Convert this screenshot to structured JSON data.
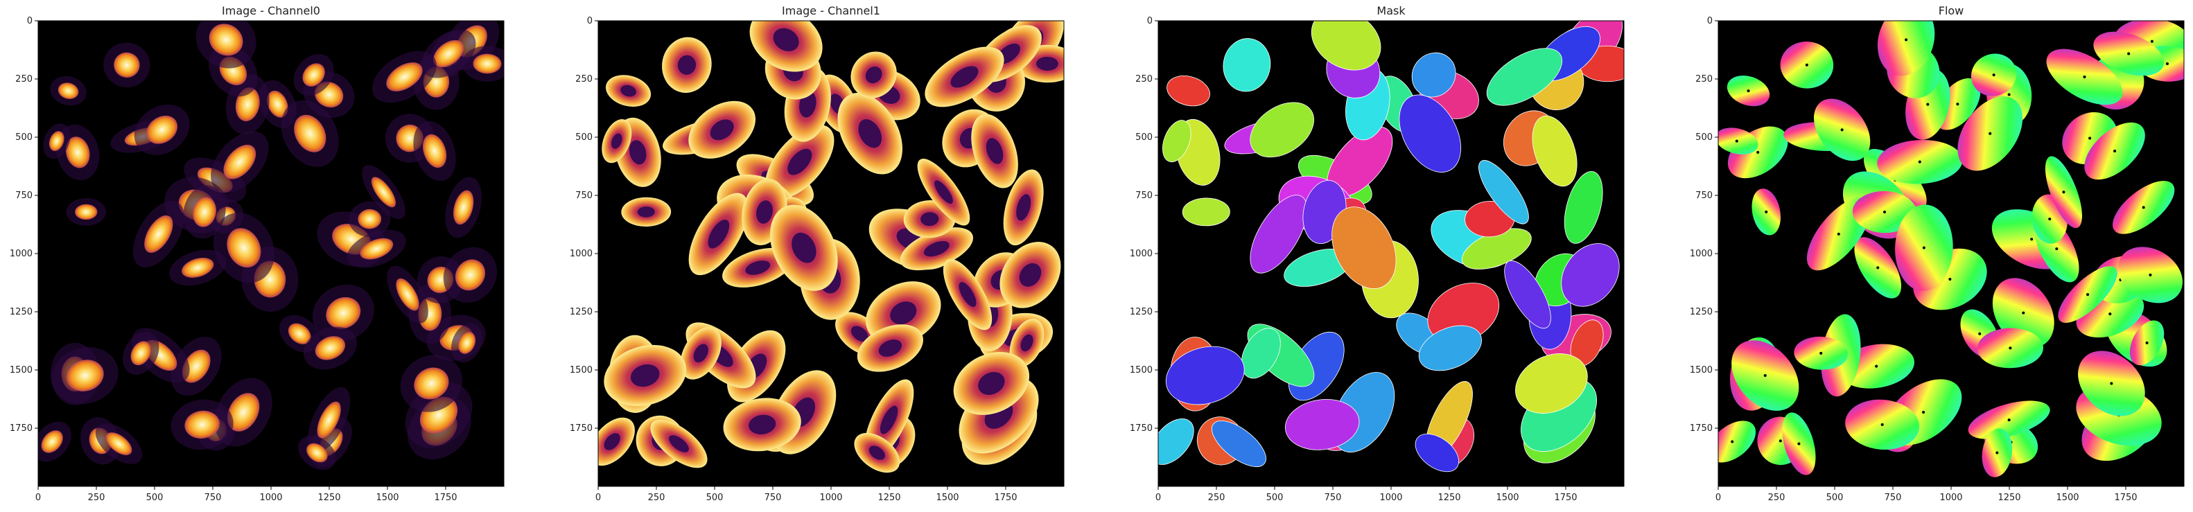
{
  "panels": [
    {
      "title": "Image - Channel0",
      "kind": "nuclei"
    },
    {
      "title": "Image - Channel1",
      "kind": "cyto"
    },
    {
      "title": "Mask",
      "kind": "mask"
    },
    {
      "title": "Flow",
      "kind": "flow"
    }
  ],
  "axes": {
    "x_ticks": [
      "0",
      "250",
      "500",
      "750",
      "1000",
      "1250",
      "1500",
      "1750"
    ],
    "y_ticks": [
      "0",
      "250",
      "500",
      "750",
      "1000",
      "1250",
      "1500",
      "1750"
    ],
    "range": [
      0,
      2000
    ]
  },
  "colors": {
    "background": "#000000",
    "colormap": "inferno"
  }
}
